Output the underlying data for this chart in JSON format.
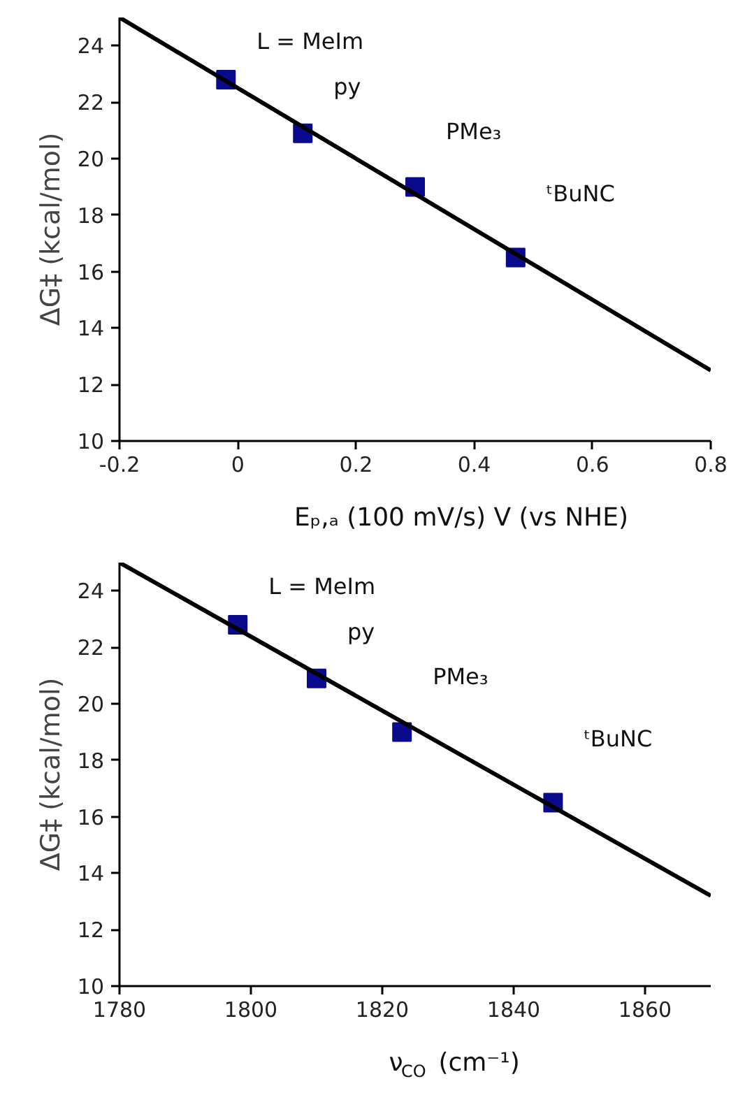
{
  "chart_data": [
    {
      "type": "scatter",
      "xlabel": "Eₚ,ₐ (100 mV/s) V (vs NHE)",
      "ylabel": "ΔG‡ (kcal/mol)",
      "xlim": [
        -0.2,
        0.8
      ],
      "ylim": [
        10,
        25
      ],
      "xticks": [
        -0.2,
        0,
        0.2,
        0.4,
        0.6,
        0.8
      ],
      "yticks": [
        10,
        12,
        14,
        16,
        18,
        20,
        22,
        24
      ],
      "grid": false,
      "marker": "square",
      "series": [
        {
          "color": "#0a0a8c",
          "x": [
            -0.02,
            0.11,
            0.3,
            0.47
          ],
          "values": [
            22.8,
            20.9,
            19.0,
            16.5
          ]
        },
        {
          "type": "line",
          "marker": "none",
          "color": "#000000",
          "x": [
            -0.2,
            0.8
          ],
          "values": [
            25,
            12.5
          ]
        }
      ],
      "annotations": [
        "L = MeIm",
        "py",
        "PMe₃",
        "ᵗBuNC"
      ]
    },
    {
      "type": "scatter",
      "xlabel": "ν$_{CO}$ (cm⁻¹)",
      "ylabel": "ΔG‡ (kcal/mol)",
      "xlim": [
        1780,
        1870
      ],
      "ylim": [
        10,
        25
      ],
      "xticks": [
        1780,
        1800,
        1820,
        1840,
        1860
      ],
      "yticks": [
        10,
        12,
        14,
        16,
        18,
        20,
        22,
        24
      ],
      "grid": false,
      "marker": "square",
      "series": [
        {
          "color": "#0a0a8c",
          "x": [
            1798,
            1810,
            1823,
            1846
          ],
          "values": [
            22.8,
            20.9,
            19.0,
            16.5
          ]
        },
        {
          "type": "line",
          "marker": "none",
          "color": "#000000",
          "x": [
            1780,
            1870
          ],
          "values": [
            25,
            13.2
          ]
        }
      ],
      "annotations": [
        "L = MeIm",
        "py",
        "PMe₃",
        "ᵗBuNC"
      ]
    }
  ]
}
